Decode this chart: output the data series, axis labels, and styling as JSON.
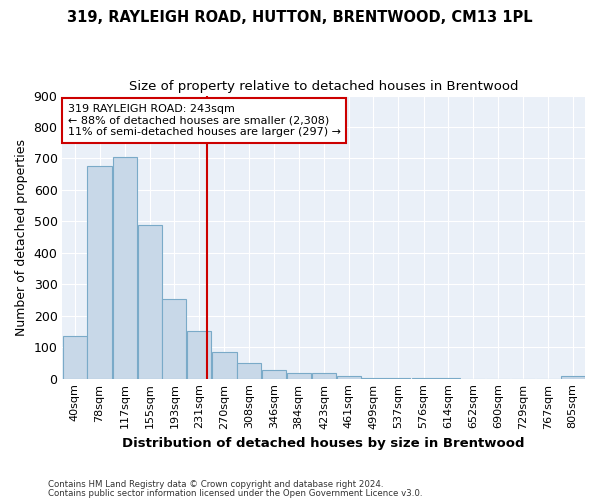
{
  "title1": "319, RAYLEIGH ROAD, HUTTON, BRENTWOOD, CM13 1PL",
  "title2": "Size of property relative to detached houses in Brentwood",
  "xlabel": "Distribution of detached houses by size in Brentwood",
  "ylabel": "Number of detached properties",
  "footer1": "Contains HM Land Registry data © Crown copyright and database right 2024.",
  "footer2": "Contains public sector information licensed under the Open Government Licence v3.0.",
  "bar_labels": [
    "40sqm",
    "78sqm",
    "117sqm",
    "155sqm",
    "193sqm",
    "231sqm",
    "270sqm",
    "308sqm",
    "346sqm",
    "384sqm",
    "423sqm",
    "461sqm",
    "499sqm",
    "537sqm",
    "576sqm",
    "614sqm",
    "652sqm",
    "690sqm",
    "729sqm",
    "767sqm",
    "805sqm"
  ],
  "bar_values": [
    135,
    675,
    705,
    490,
    252,
    150,
    85,
    50,
    28,
    18,
    18,
    10,
    3,
    2,
    1,
    1,
    0,
    0,
    0,
    0,
    8
  ],
  "bar_color": "#c8d8e8",
  "bar_edgecolor": "#7aaac8",
  "property_label": "319 RAYLEIGH ROAD: 243sqm",
  "annotation_line1": "← 88% of detached houses are smaller (2,308)",
  "annotation_line2": "11% of semi-detached houses are larger (297) →",
  "vline_x": 243,
  "vline_color": "#cc0000",
  "annotation_box_edgecolor": "#cc0000",
  "ylim": [
    0,
    900
  ],
  "yticks": [
    0,
    100,
    200,
    300,
    400,
    500,
    600,
    700,
    800,
    900
  ],
  "background_color": "#eaf0f8",
  "grid_color": "#ffffff"
}
